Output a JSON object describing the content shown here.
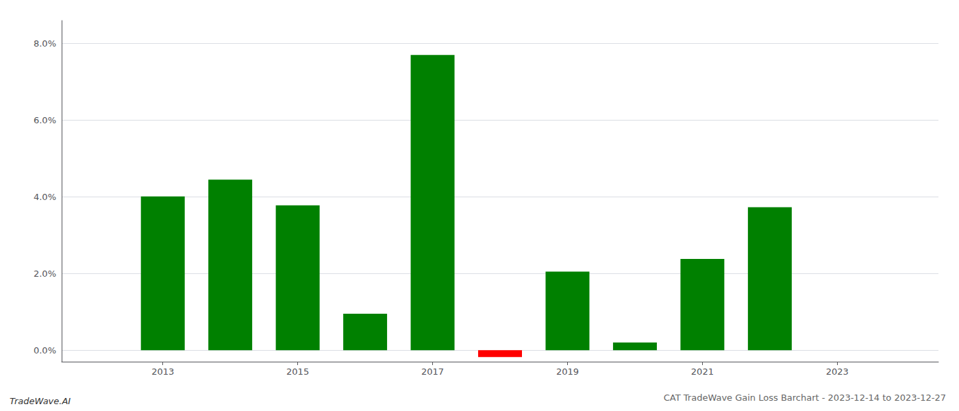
{
  "chart_data": {
    "type": "bar",
    "title": "CAT TradeWave Gain Loss Barchart - 2023-12-14 to 2023-12-27",
    "annotations": [
      "TradeWave.AI"
    ],
    "x": [
      2013,
      2014,
      2015,
      2016,
      2017,
      2018,
      2019,
      2020,
      2021,
      2022
    ],
    "values": [
      0.0401,
      0.0445,
      0.0378,
      0.0095,
      0.077,
      -0.0018,
      0.0205,
      0.002,
      0.0238,
      0.0373
    ],
    "colors": [
      "#008000",
      "#008000",
      "#008000",
      "#008000",
      "#008000",
      "#ff0000",
      "#008000",
      "#008000",
      "#008000",
      "#008000"
    ],
    "xlim": [
      2011.5,
      2024.5
    ],
    "xticks": [
      2013,
      2015,
      2017,
      2019,
      2021,
      2023
    ],
    "ylim": [
      -0.003,
      0.086
    ],
    "yticks": [
      {
        "value": 0.0,
        "label": "0.0%"
      },
      {
        "value": 0.02,
        "label": "2.0%"
      },
      {
        "value": 0.04,
        "label": "4.0%"
      },
      {
        "value": 0.06,
        "label": "6.0%"
      },
      {
        "value": 0.08,
        "label": "8.0%"
      }
    ],
    "grid": true
  }
}
